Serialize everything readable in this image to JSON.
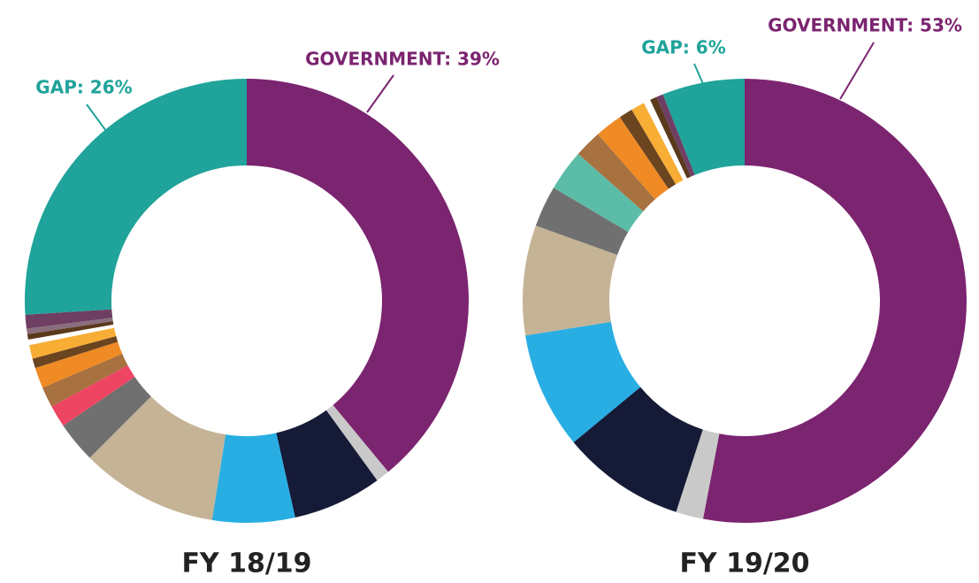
{
  "chart_data": [
    {
      "type": "donut",
      "title": "FY 18/19",
      "values": [
        39,
        1,
        6.5,
        6,
        10,
        3,
        1.6,
        1.5,
        1.5,
        0.7,
        1,
        0.4,
        0.4,
        0.4,
        1,
        26
      ],
      "value_labels": [
        "GOVERNMENT: 39%",
        null,
        null,
        null,
        null,
        null,
        null,
        null,
        null,
        null,
        null,
        null,
        null,
        null,
        null,
        "GAP: 26%"
      ],
      "colors": [
        "#7b2470",
        "#c9c9c9",
        "#151a37",
        "#29aee3",
        "#c5b396",
        "#6f706f",
        "#ee4563",
        "#a87240",
        "#ef8a24",
        "#6b4420",
        "#f8ad35",
        "#ffffff",
        "#5a3a1c",
        "#8a6e7e",
        "#6e3f63",
        "#1fa39a"
      ]
    },
    {
      "type": "donut",
      "title": "FY 19/20",
      "values": [
        53,
        2,
        9,
        8.5,
        8,
        3,
        3,
        2,
        2,
        1,
        1,
        0.5,
        0.5,
        0.5,
        6
      ],
      "value_labels": [
        "GOVERNMENT: 53%",
        null,
        null,
        null,
        null,
        null,
        null,
        null,
        null,
        null,
        null,
        null,
        null,
        null,
        "GAP: 6%"
      ],
      "colors": [
        "#7b2470",
        "#c9c9c9",
        "#151a37",
        "#29aee3",
        "#c5b396",
        "#6f706f",
        "#5bbda8",
        "#a87240",
        "#ef8a24",
        "#6b4420",
        "#f8ad35",
        "#ffffff",
        "#5a3a1c",
        "#6e3f63",
        "#1fa39a"
      ]
    }
  ]
}
